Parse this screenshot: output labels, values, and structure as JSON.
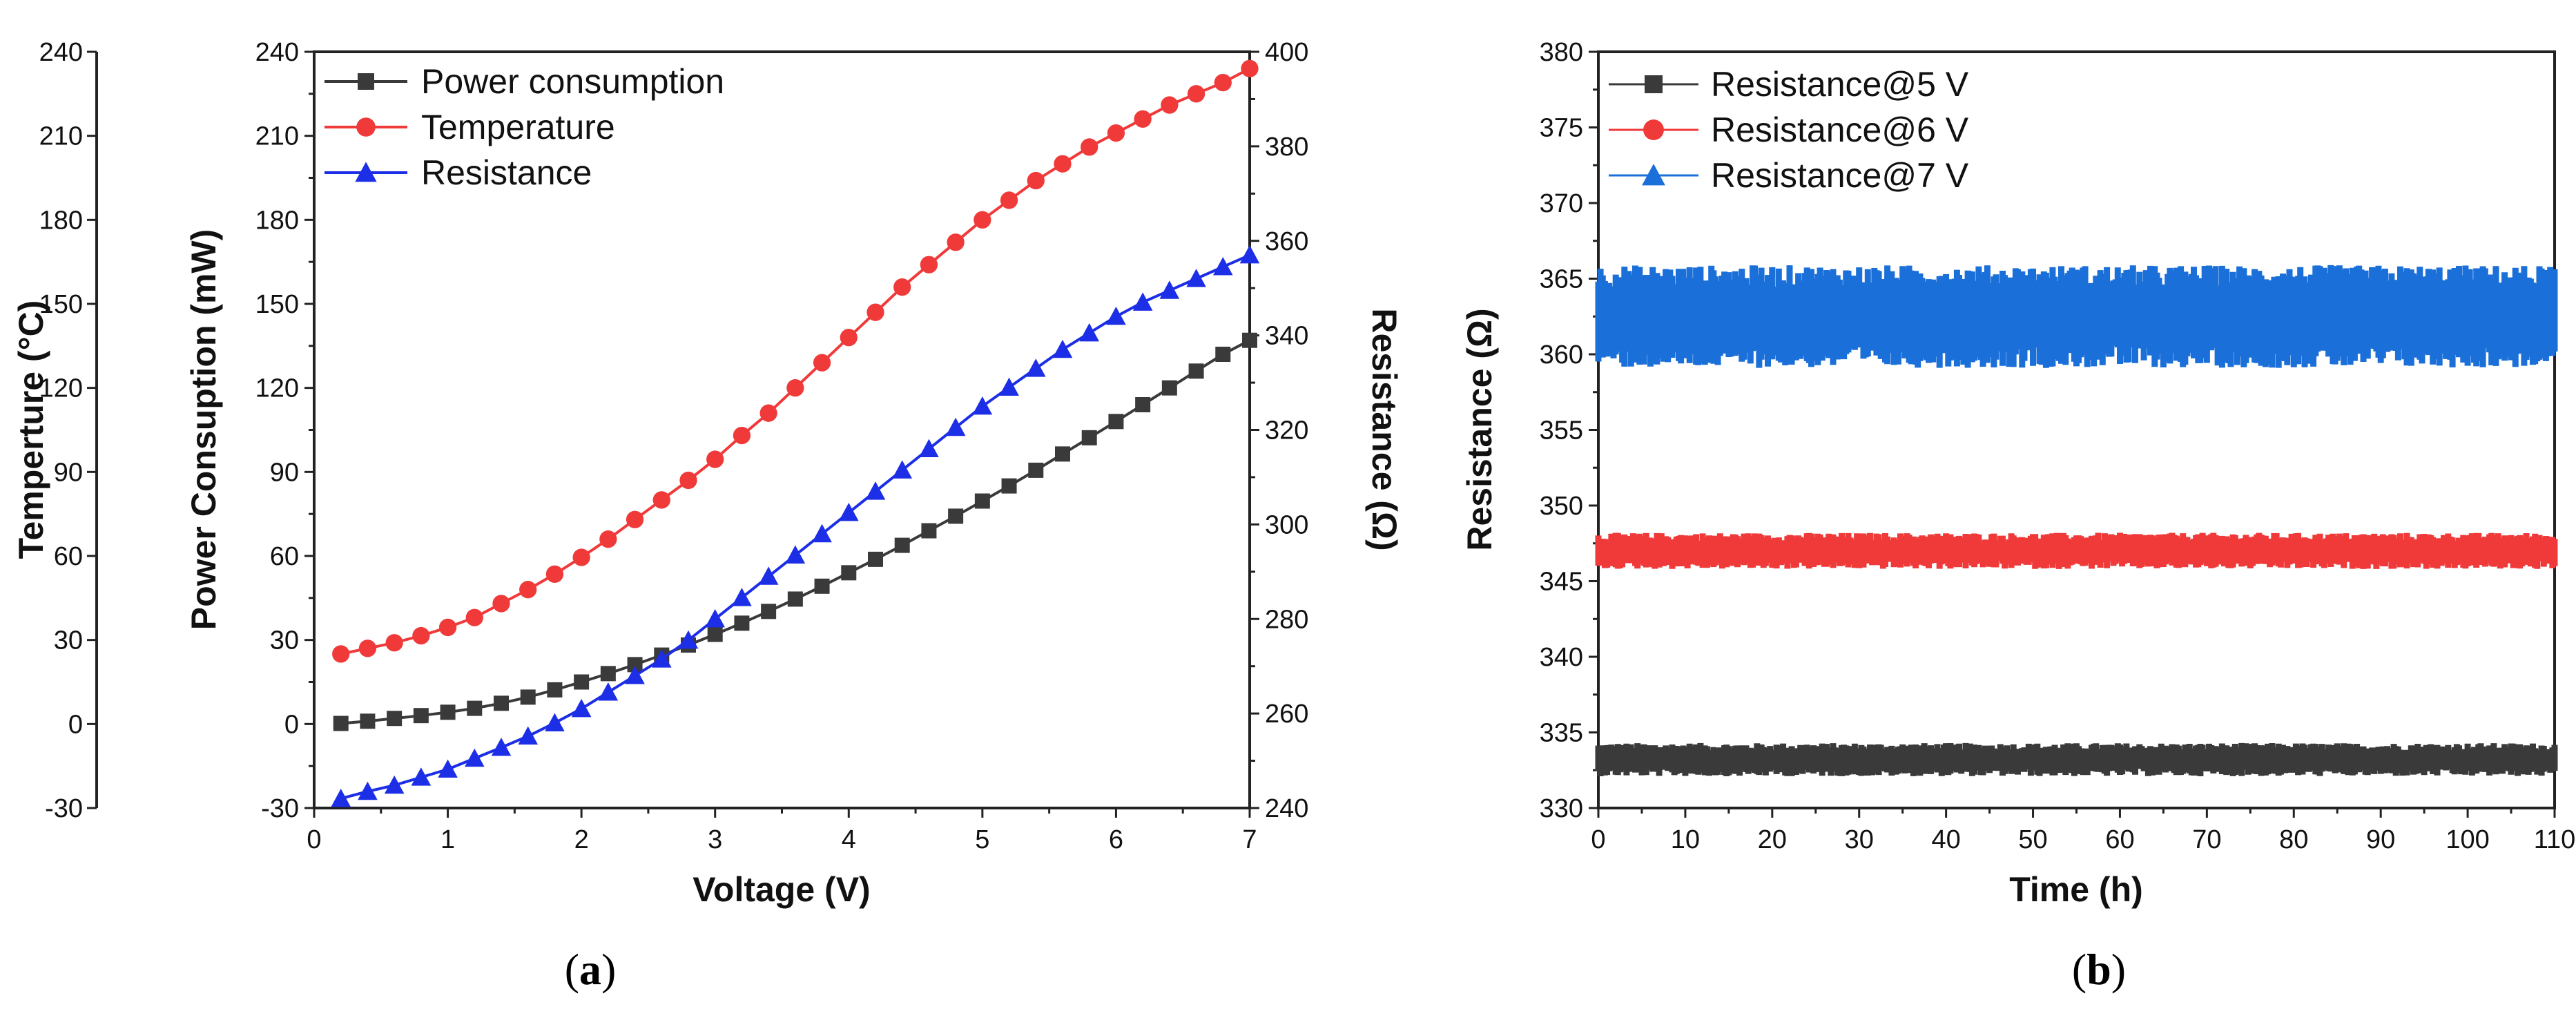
{
  "chart_data": [
    {
      "id": "a",
      "type": "line",
      "caption_letter": "a",
      "xlabel": "Voltage (V)",
      "xlim": [
        0,
        7
      ],
      "xticks": [
        "0",
        "1",
        "2",
        "3",
        "4",
        "5",
        "6",
        "7"
      ],
      "axes": {
        "temperature": {
          "label": "Temperture (°C)",
          "ylim": [
            -30,
            240
          ],
          "ticks": [
            "-30",
            "0",
            "30",
            "60",
            "90",
            "120",
            "150",
            "180",
            "210",
            "240"
          ]
        },
        "power": {
          "label": "Power Consuption (mW)",
          "ylim": [
            -30,
            240
          ],
          "ticks": [
            "-30",
            "0",
            "30",
            "60",
            "90",
            "120",
            "150",
            "180",
            "210",
            "240"
          ]
        },
        "resistance": {
          "label": "Resistance (Ω)",
          "ylim": [
            240,
            400
          ],
          "ticks": [
            "240",
            "260",
            "280",
            "300",
            "320",
            "340",
            "360",
            "380",
            "400"
          ]
        }
      },
      "x": [
        0.2,
        0.4,
        0.6,
        0.8,
        1.0,
        1.2,
        1.4,
        1.6,
        1.8,
        2.0,
        2.2,
        2.4,
        2.6,
        2.8,
        3.0,
        3.2,
        3.4,
        3.6,
        3.8,
        4.0,
        4.2,
        4.4,
        4.6,
        4.8,
        5.0,
        5.2,
        5.4,
        5.6,
        5.8,
        6.0,
        6.2,
        6.4,
        6.6,
        6.8,
        7.0
      ],
      "series": [
        {
          "name": "Power consumption",
          "axis": "power",
          "color": "#3a3a3a",
          "marker": "square",
          "values": [
            0.2,
            1.0,
            2.0,
            3.0,
            4.2,
            5.6,
            7.4,
            9.6,
            12.2,
            15.0,
            18.0,
            21.2,
            24.6,
            28.2,
            32.0,
            36.0,
            40.2,
            44.6,
            49.2,
            54.0,
            58.8,
            63.8,
            69.0,
            74.2,
            79.6,
            85.0,
            90.6,
            96.4,
            102.2,
            108.0,
            114.0,
            120.0,
            126.0,
            132.0,
            137.0
          ]
        },
        {
          "name": "Temperature",
          "axis": "temperature",
          "color": "#f03a3a",
          "marker": "circle",
          "values": [
            25,
            27,
            29,
            31.5,
            34.5,
            38,
            43,
            48,
            53.5,
            59.5,
            66,
            73,
            80,
            87,
            94.5,
            103,
            111,
            120,
            129,
            138,
            147,
            156,
            164,
            172,
            180,
            187,
            194,
            200,
            206,
            211,
            216,
            221,
            225,
            229,
            234
          ]
        },
        {
          "name": "Resistance",
          "axis": "resistance",
          "color": "#1c2ee6",
          "marker": "triangle",
          "values": [
            242,
            243.5,
            244.8,
            246.5,
            248.2,
            250.5,
            252.8,
            255.2,
            258,
            261,
            264.5,
            268,
            271.5,
            275.5,
            280,
            284.5,
            289,
            293.5,
            298,
            302.5,
            307,
            311.5,
            316,
            320.5,
            325,
            329,
            333,
            337,
            340.5,
            344,
            347,
            349.5,
            352,
            354.5,
            357
          ]
        }
      ]
    },
    {
      "id": "b",
      "type": "scatter",
      "caption_letter": "b",
      "xlabel": "Time (h)",
      "ylabel": "Resistance (Ω)",
      "xlim": [
        0,
        110
      ],
      "ylim": [
        330,
        380
      ],
      "xticks": [
        "0",
        "10",
        "20",
        "30",
        "40",
        "50",
        "60",
        "70",
        "80",
        "90",
        "100",
        "110"
      ],
      "yticks": [
        "330",
        "335",
        "340",
        "345",
        "350",
        "355",
        "360",
        "365",
        "370",
        "375",
        "380"
      ],
      "series": [
        {
          "name": "Resistance@5 V",
          "color": "#3a3a3a",
          "marker": "square",
          "mean": 333.2,
          "range": [
            332.2,
            334.4
          ]
        },
        {
          "name": "Resistance@6 V",
          "color": "#f03a3a",
          "marker": "circle",
          "mean": 347.0,
          "range": [
            345.8,
            348.2
          ]
        },
        {
          "name": "Resistance@7 V",
          "color": "#1a6fd8",
          "marker": "triangle",
          "mean": 362.5,
          "range": [
            359.2,
            366.0
          ]
        }
      ]
    }
  ]
}
